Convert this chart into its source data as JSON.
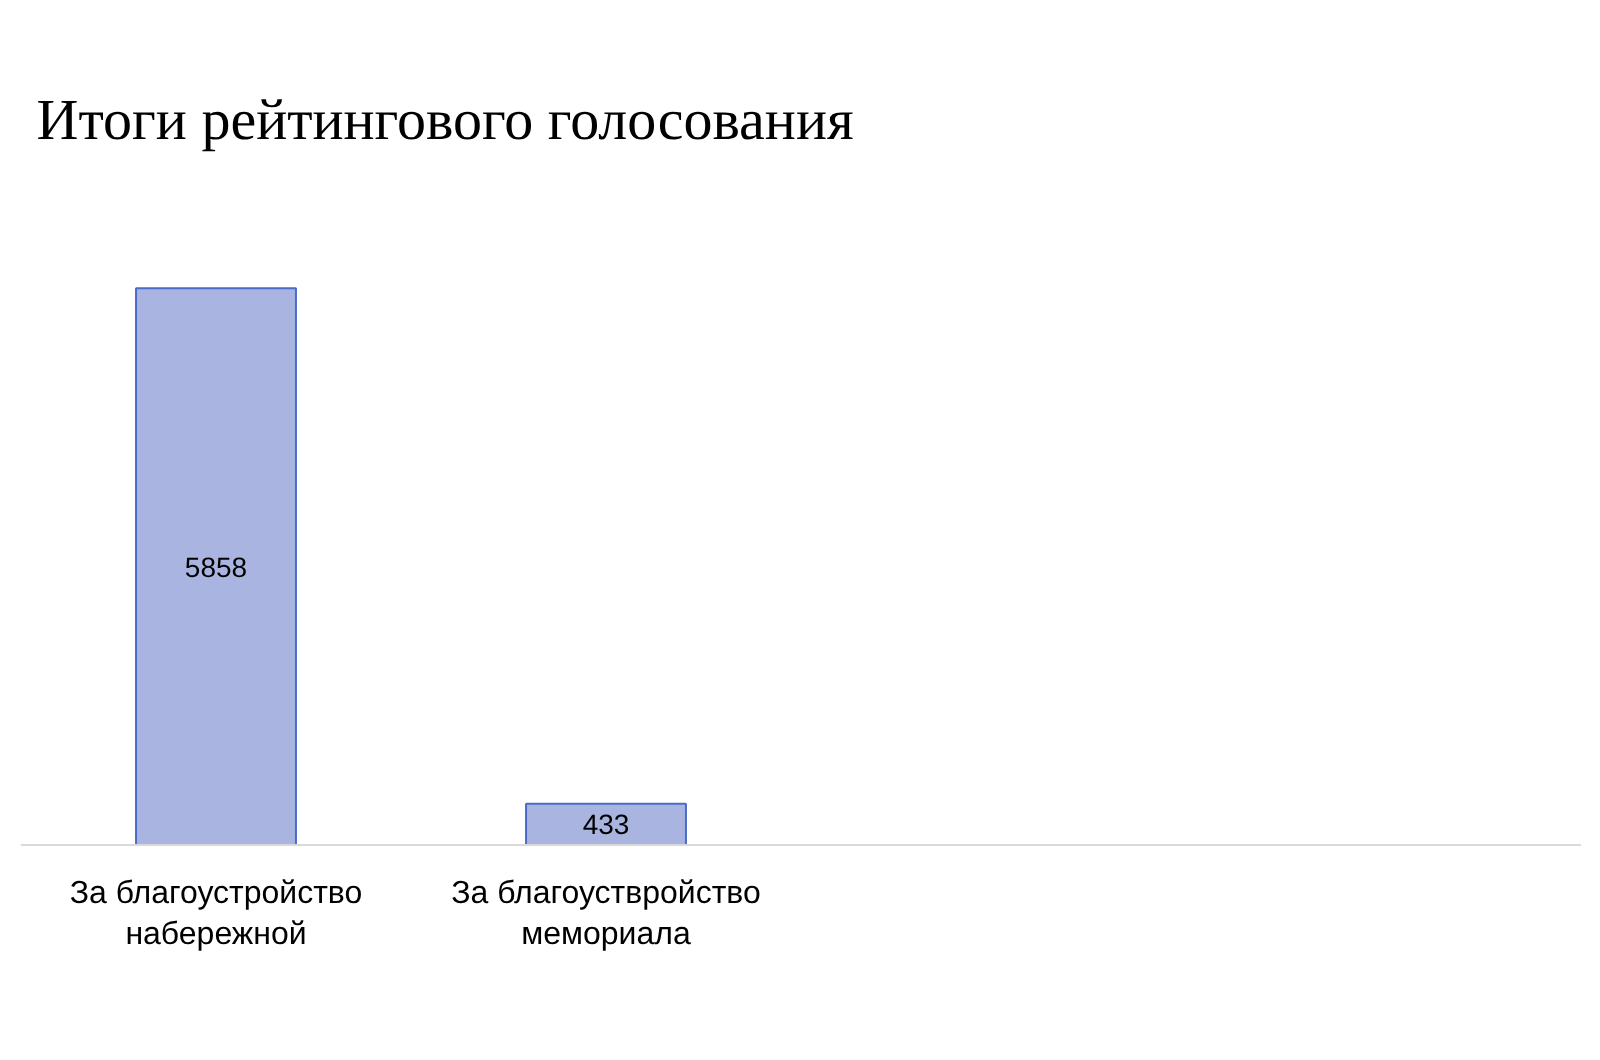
{
  "chart_data": {
    "type": "bar",
    "title": "Итоги рейтингового голосования",
    "categories": [
      "За благоустройство\nнабережной",
      "За благоуствройство\nмемориала",
      null,
      null
    ],
    "values": [
      5858,
      433,
      null,
      null
    ],
    "color": "#a9b5e0",
    "data_labels": true
  }
}
